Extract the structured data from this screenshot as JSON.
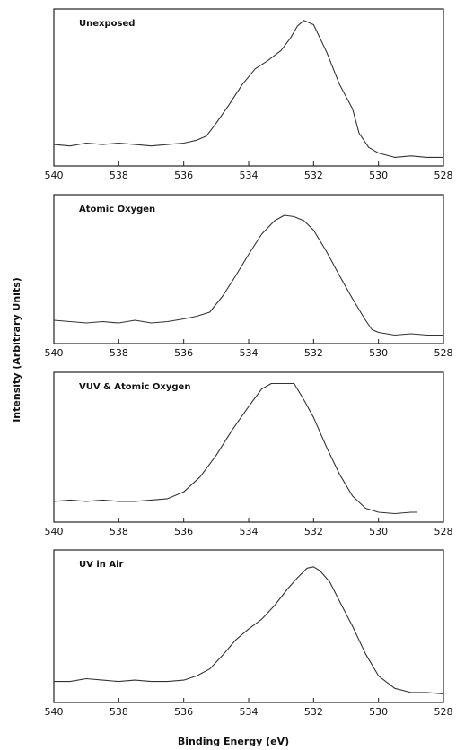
{
  "figure": {
    "ylabel": "Intensity (Arbitrary Units)",
    "xlabel": "Binding Energy (eV)"
  },
  "chart_data": [
    {
      "type": "line",
      "title": "Unexposed",
      "xlim": [
        540,
        528
      ],
      "xticks": [
        540,
        538,
        536,
        534,
        532,
        530,
        528
      ],
      "ylim": [
        0,
        1
      ],
      "series": [
        {
          "x": [
            540,
            539.5,
            539,
            538.5,
            538,
            537.5,
            537,
            536.5,
            536,
            535.6,
            535.3,
            535,
            534.6,
            534.2,
            533.8,
            533.4,
            533.0,
            532.7,
            532.5,
            532.3,
            532.0,
            531.6,
            531.2,
            530.8,
            530.6,
            530.3,
            530.0,
            529.5,
            529.0,
            528.5,
            528
          ],
          "y": [
            0.1,
            0.09,
            0.11,
            0.1,
            0.11,
            0.1,
            0.09,
            0.1,
            0.11,
            0.13,
            0.16,
            0.25,
            0.38,
            0.52,
            0.63,
            0.69,
            0.76,
            0.85,
            0.93,
            0.97,
            0.94,
            0.75,
            0.52,
            0.35,
            0.18,
            0.08,
            0.04,
            0.01,
            0.02,
            0.01,
            0.01
          ]
        }
      ]
    },
    {
      "type": "line",
      "title": "Atomic Oxygen",
      "xlim": [
        540,
        528
      ],
      "xticks": [
        540,
        538,
        536,
        534,
        532,
        530,
        528
      ],
      "ylim": [
        0,
        1
      ],
      "series": [
        {
          "x": [
            540,
            539.5,
            539,
            538.5,
            538,
            537.5,
            537,
            536.5,
            536,
            535.6,
            535.2,
            534.8,
            534.4,
            534.0,
            533.6,
            533.2,
            532.9,
            532.6,
            532.3,
            532.0,
            531.6,
            531.2,
            530.8,
            530.4,
            530.2,
            530.0,
            529.5,
            529.0,
            528.5,
            528
          ],
          "y": [
            0.12,
            0.11,
            0.1,
            0.11,
            0.1,
            0.12,
            0.1,
            0.11,
            0.13,
            0.15,
            0.18,
            0.3,
            0.45,
            0.61,
            0.76,
            0.86,
            0.9,
            0.89,
            0.86,
            0.79,
            0.63,
            0.45,
            0.28,
            0.12,
            0.05,
            0.03,
            0.01,
            0.02,
            0.01,
            0.01
          ]
        }
      ]
    },
    {
      "type": "line",
      "title": "VUV & Atomic Oxygen",
      "xlim": [
        540,
        528
      ],
      "xticks": [
        540,
        538,
        536,
        534,
        532,
        530,
        528
      ],
      "ylim": [
        0,
        1
      ],
      "series": [
        {
          "x": [
            540,
            539.5,
            539,
            538.5,
            538,
            537.5,
            537,
            536.5,
            536,
            535.5,
            535,
            534.5,
            534.0,
            533.6,
            533.3,
            533.0,
            532.6,
            532.3,
            532.0,
            531.6,
            531.2,
            530.8,
            530.4,
            530.0,
            529.5,
            529.0,
            528.8
          ],
          "y": [
            0.1,
            0.11,
            0.1,
            0.11,
            0.1,
            0.1,
            0.11,
            0.12,
            0.17,
            0.28,
            0.44,
            0.63,
            0.8,
            0.93,
            0.97,
            0.97,
            0.97,
            0.85,
            0.72,
            0.5,
            0.3,
            0.14,
            0.05,
            0.02,
            0.01,
            0.02,
            0.02
          ]
        }
      ]
    },
    {
      "type": "line",
      "title": "UV in Air",
      "xlim": [
        540,
        528
      ],
      "xticks": [
        540,
        538,
        536,
        534,
        532,
        530,
        528
      ],
      "ylim": [
        0,
        1
      ],
      "series": [
        {
          "x": [
            540,
            539.5,
            539,
            538.5,
            538,
            537.5,
            537,
            536.5,
            536,
            535.6,
            535.2,
            534.8,
            534.4,
            534.0,
            533.6,
            533.2,
            532.8,
            532.5,
            532.2,
            532.0,
            531.8,
            531.5,
            531.2,
            530.8,
            530.4,
            530.0,
            529.5,
            529.0,
            528.5,
            528
          ],
          "y": [
            0.1,
            0.1,
            0.12,
            0.11,
            0.1,
            0.11,
            0.1,
            0.1,
            0.11,
            0.14,
            0.19,
            0.29,
            0.4,
            0.48,
            0.55,
            0.65,
            0.77,
            0.85,
            0.92,
            0.93,
            0.9,
            0.82,
            0.68,
            0.5,
            0.3,
            0.14,
            0.05,
            0.02,
            0.02,
            0.01
          ]
        }
      ]
    }
  ]
}
